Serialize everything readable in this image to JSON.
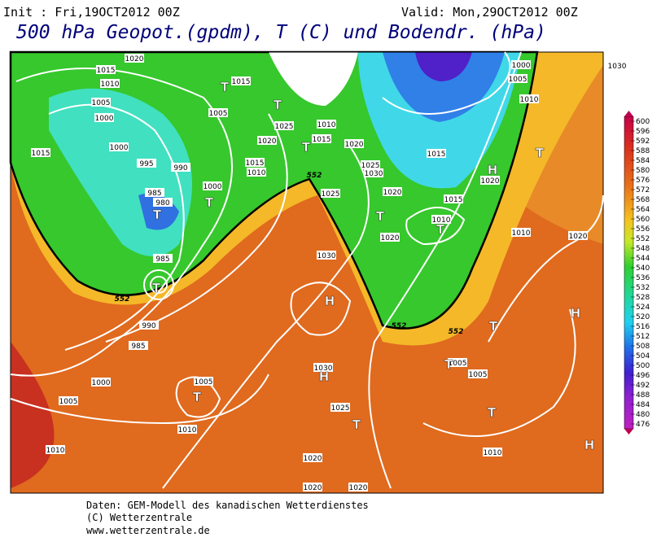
{
  "header": {
    "init": "Init : Fri,19OCT2012 00Z",
    "valid": "Valid: Mon,29OCT2012 00Z",
    "title": "500 hPa Geopot.(gpdm), T (C) und Bodendr. (hPa)"
  },
  "colorbar": {
    "labels": [
      "600",
      "596",
      "592",
      "588",
      "584",
      "580",
      "576",
      "572",
      "568",
      "564",
      "560",
      "556",
      "552",
      "548",
      "544",
      "540",
      "536",
      "532",
      "528",
      "524",
      "520",
      "516",
      "512",
      "508",
      "504",
      "500",
      "496",
      "492",
      "488",
      "484",
      "480",
      "476"
    ]
  },
  "map": {
    "isobar_labels": [
      "1020",
      "1015",
      "1010",
      "1005",
      "1000",
      "1000",
      "1015",
      "995",
      "990",
      "1000",
      "985",
      "980",
      "985",
      "990",
      "985",
      "1000",
      "1005",
      "1010",
      "1005",
      "1010",
      "1015",
      "1005",
      "1025",
      "1020",
      "1015",
      "1010",
      "1010",
      "1015",
      "1020",
      "1025",
      "1025",
      "1030",
      "1020",
      "1015",
      "1010",
      "1020",
      "1030",
      "1030",
      "1025",
      "1020",
      "1020",
      "1020",
      "1005",
      "1005",
      "1010",
      "1010",
      "1020",
      "1000",
      "1005",
      "1010",
      "1015",
      "1020",
      "1030"
    ],
    "contour_552_labels": [
      "552",
      "552",
      "552",
      "552"
    ],
    "markers": [
      "T",
      "T",
      "T",
      "T",
      "T",
      "T",
      "H",
      "H",
      "T",
      "T",
      "T",
      "T",
      "H",
      "T",
      "H",
      "T",
      "T",
      "T",
      "H"
    ]
  },
  "footer": {
    "lines": [
      "Daten: GEM-Modell des kanadischen Wetterdienstes",
      "(C) Wetterzentrale",
      "www.wetterzentrale.de"
    ]
  }
}
